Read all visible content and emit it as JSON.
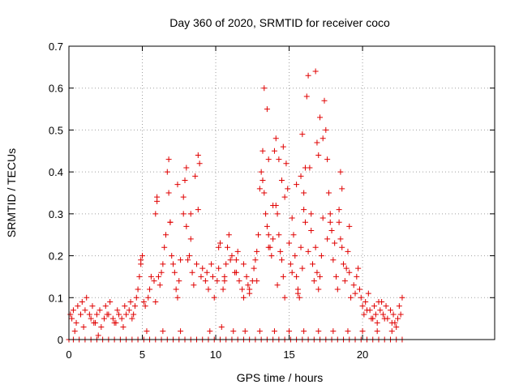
{
  "colors": {
    "series": "#e00000",
    "axis": "#000000",
    "grid": "#a0a0a0",
    "background": "#ffffff"
  },
  "chart_data": {
    "type": "scatter",
    "title": "Day 360 of 2020, SRMTID for receiver coco",
    "xlabel": "GPS time / hours",
    "ylabel": "SRMTID / TECUs",
    "xlim": [
      0,
      29
    ],
    "ylim": [
      0,
      0.7
    ],
    "x_ticks": [
      0,
      5,
      10,
      15,
      20
    ],
    "y_ticks": [
      0,
      0.1,
      0.2,
      0.3,
      0.4,
      0.5,
      0.6,
      0.7
    ],
    "x_tick_labels": [
      "0",
      "5",
      "10",
      "15",
      "20"
    ],
    "y_tick_labels": [
      "0",
      "0.1",
      "0.2",
      "0.3",
      "0.4",
      "0.5",
      "0.6",
      "0.7"
    ],
    "grid": true,
    "marker": "plus",
    "series": [
      {
        "name": "SRMTID",
        "x": [
          0.1,
          0.2,
          0.3,
          0.5,
          0.6,
          0.8,
          0.9,
          1.1,
          1.2,
          1.4,
          1.5,
          1.6,
          1.8,
          1.9,
          2.1,
          2.2,
          2.4,
          2.5,
          2.7,
          2.8,
          3.0,
          3.1,
          3.3,
          3.4,
          3.6,
          3.8,
          3.9,
          4.1,
          4.2,
          4.4,
          4.5,
          4.6,
          4.7,
          4.8,
          4.9,
          5.0,
          5.1,
          5.2,
          5.4,
          5.5,
          5.6,
          5.8,
          5.9,
          6.0,
          6.1,
          6.2,
          6.3,
          6.4,
          6.5,
          6.6,
          6.7,
          6.8,
          6.9,
          7.0,
          7.1,
          7.2,
          7.3,
          7.4,
          7.5,
          7.6,
          7.8,
          7.9,
          8.0,
          8.1,
          8.2,
          8.3,
          8.4,
          8.5,
          8.7,
          8.8,
          8.9,
          9.0,
          9.1,
          9.3,
          9.4,
          9.5,
          9.7,
          9.8,
          9.9,
          10.1,
          10.2,
          10.3,
          10.5,
          10.6,
          10.7,
          10.8,
          10.9,
          11.0,
          11.1,
          11.3,
          11.4,
          11.5,
          11.6,
          11.8,
          11.9,
          12.1,
          12.2,
          12.3,
          12.5,
          12.6,
          12.7,
          12.8,
          13.0,
          13.1,
          13.2,
          13.3,
          13.4,
          13.5,
          13.6,
          13.7,
          13.8,
          13.9,
          14.0,
          14.1,
          14.2,
          14.3,
          14.4,
          14.5,
          14.6,
          14.7,
          14.8,
          14.9,
          15.0,
          15.1,
          15.2,
          15.3,
          15.4,
          15.5,
          15.6,
          15.7,
          15.8,
          15.9,
          16.0,
          16.1,
          16.2,
          16.3,
          16.4,
          16.5,
          16.6,
          16.7,
          16.8,
          16.9,
          17.0,
          17.1,
          17.2,
          17.3,
          17.4,
          17.5,
          17.6,
          17.7,
          17.8,
          17.9,
          18.0,
          18.1,
          18.2,
          18.3,
          18.4,
          18.5,
          18.6,
          18.7,
          18.8,
          18.9,
          19.0,
          19.1,
          19.2,
          19.4,
          19.5,
          19.6,
          19.8,
          19.9,
          20.0,
          20.1,
          20.2,
          20.4,
          20.5,
          20.6,
          20.8,
          20.9,
          21.0,
          21.2,
          21.3,
          21.4,
          21.6,
          21.7,
          21.9,
          22.0,
          22.1,
          22.3,
          22.4,
          22.5,
          22.6,
          22.7,
          5.9,
          6.0,
          6.9,
          7.4,
          8.0,
          8.6,
          8.8,
          13.2,
          13.3,
          13.5,
          13.6,
          14.6,
          15.8,
          15.9,
          16.0,
          16.8,
          16.9,
          17.0,
          17.1,
          18.5,
          18.6,
          6.8,
          7.8,
          8.3,
          12.9,
          13.9,
          14.5,
          16.1,
          17.3,
          18.4,
          19.1,
          13.6,
          14.1,
          14.3,
          15.2,
          15.5,
          16.3,
          16.5,
          17.6,
          17.8,
          4.9,
          10.2,
          10.6,
          11.4,
          11.9,
          12.3,
          12.8,
          14.2,
          14.7,
          15.6,
          19.7,
          20.3,
          20.7,
          21.1,
          21.5,
          22.2,
          2.6,
          3.2,
          3.7,
          4.3,
          1.0,
          1.7,
          0.4,
          2.0,
          5.3,
          6.4,
          7.6,
          9.6,
          10.4,
          11.2,
          12.0,
          13.0,
          14.0,
          15.0,
          16.0,
          17.0,
          18.0,
          19.0,
          20.0,
          21.0,
          22.0,
          0.0,
          0.3,
          0.7,
          1.1,
          1.5,
          1.9,
          2.3,
          2.7,
          3.1,
          3.5,
          3.9,
          4.3,
          4.7,
          5.1,
          5.5,
          5.9,
          6.3,
          6.7,
          7.1,
          7.5,
          7.9,
          8.3,
          8.7,
          9.1,
          9.5,
          9.9,
          10.3,
          10.7,
          11.1,
          11.5,
          11.9,
          12.3,
          12.7,
          13.1,
          13.5,
          13.9,
          14.3,
          14.7,
          15.1,
          15.5,
          15.9,
          16.3,
          16.7,
          17.1,
          17.5,
          17.9,
          18.3,
          18.7,
          19.1,
          19.5,
          19.9,
          20.3,
          20.7,
          21.1,
          21.5,
          21.9,
          22.3,
          22.7
        ],
        "y": [
          0.06,
          0.05,
          0.07,
          0.04,
          0.08,
          0.06,
          0.09,
          0.07,
          0.1,
          0.06,
          0.05,
          0.08,
          0.04,
          0.06,
          0.07,
          0.03,
          0.05,
          0.08,
          0.06,
          0.09,
          0.05,
          0.04,
          0.07,
          0.06,
          0.05,
          0.08,
          0.06,
          0.07,
          0.09,
          0.06,
          0.08,
          0.1,
          0.12,
          0.15,
          0.18,
          0.2,
          0.09,
          0.08,
          0.1,
          0.12,
          0.15,
          0.14,
          0.3,
          0.33,
          0.15,
          0.13,
          0.16,
          0.18,
          0.22,
          0.25,
          0.4,
          0.35,
          0.28,
          0.2,
          0.18,
          0.16,
          0.12,
          0.1,
          0.14,
          0.19,
          0.3,
          0.38,
          0.27,
          0.19,
          0.2,
          0.24,
          0.16,
          0.13,
          0.18,
          0.44,
          0.42,
          0.15,
          0.17,
          0.14,
          0.16,
          0.12,
          0.18,
          0.15,
          0.1,
          0.14,
          0.22,
          0.23,
          0.12,
          0.15,
          0.18,
          0.22,
          0.25,
          0.19,
          0.2,
          0.16,
          0.19,
          0.21,
          0.14,
          0.12,
          0.1,
          0.15,
          0.13,
          0.11,
          0.14,
          0.17,
          0.19,
          0.21,
          0.36,
          0.4,
          0.38,
          0.35,
          0.3,
          0.27,
          0.25,
          0.22,
          0.2,
          0.32,
          0.45,
          0.48,
          0.3,
          0.25,
          0.21,
          0.19,
          0.15,
          0.34,
          0.42,
          0.36,
          0.23,
          0.18,
          0.16,
          0.25,
          0.2,
          0.15,
          0.12,
          0.1,
          0.22,
          0.17,
          0.35,
          0.28,
          0.58,
          0.63,
          0.41,
          0.26,
          0.18,
          0.14,
          0.22,
          0.16,
          0.12,
          0.15,
          0.2,
          0.48,
          0.57,
          0.5,
          0.43,
          0.35,
          0.3,
          0.26,
          0.19,
          0.23,
          0.15,
          0.12,
          0.28,
          0.24,
          0.22,
          0.18,
          0.14,
          0.17,
          0.21,
          0.16,
          0.1,
          0.13,
          0.11,
          0.15,
          0.12,
          0.1,
          0.08,
          0.06,
          0.09,
          0.11,
          0.07,
          0.05,
          0.08,
          0.06,
          0.04,
          0.07,
          0.09,
          0.06,
          0.08,
          0.05,
          0.07,
          0.04,
          0.06,
          0.03,
          0.05,
          0.08,
          0.06,
          0.1,
          0.09,
          0.34,
          0.28,
          0.37,
          0.41,
          0.39,
          0.31,
          0.45,
          0.6,
          0.55,
          0.43,
          0.46,
          0.39,
          0.49,
          0.31,
          0.64,
          0.47,
          0.44,
          0.53,
          0.4,
          0.36,
          0.43,
          0.34,
          0.3,
          0.25,
          0.24,
          0.38,
          0.41,
          0.29,
          0.31,
          0.27,
          0.22,
          0.32,
          0.43,
          0.29,
          0.37,
          0.21,
          0.3,
          0.24,
          0.28,
          0.19,
          0.17,
          0.14,
          0.16,
          0.18,
          0.12,
          0.14,
          0.13,
          0.1,
          0.11,
          0.17,
          0.07,
          0.05,
          0.09,
          0.05,
          0.04,
          0.06,
          0.04,
          0.03,
          0.05,
          0.03,
          0.04,
          0.02,
          0.01,
          0.02,
          0.02,
          0.02,
          0.02,
          0.03,
          0.02,
          0.02,
          0.02,
          0.02,
          0.02,
          0.02,
          0.02,
          0.02,
          0.02,
          0.02,
          0.02,
          0.02,
          0.0,
          0.0,
          0.0,
          0.0,
          0.0,
          0.0,
          0.0,
          0.0,
          0.0,
          0.0,
          0.0,
          0.0,
          0.0,
          0.0,
          0.0,
          0.0,
          0.0,
          0.0,
          0.0,
          0.0,
          0.0,
          0.0,
          0.0,
          0.0,
          0.0,
          0.0,
          0.0,
          0.0,
          0.0,
          0.0,
          0.0,
          0.0,
          0.0,
          0.0,
          0.0,
          0.0,
          0.0,
          0.0,
          0.0,
          0.0,
          0.0,
          0.0,
          0.0,
          0.0,
          0.0,
          0.0,
          0.0,
          0.0,
          0.0,
          0.0,
          0.0,
          0.0,
          0.0,
          0.0,
          0.0,
          0.0,
          0.0,
          0.0
        ]
      }
    ]
  }
}
